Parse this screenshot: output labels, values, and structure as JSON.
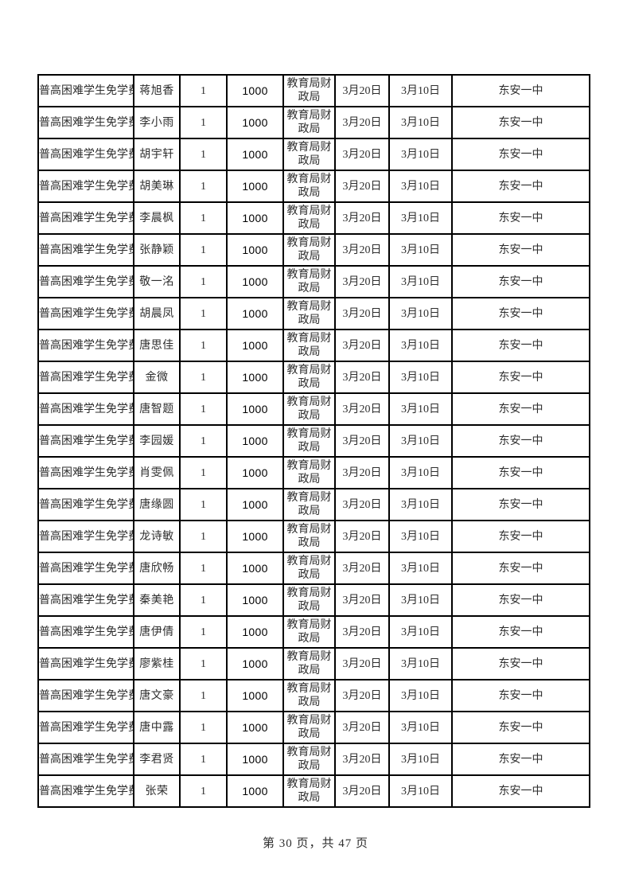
{
  "document": {
    "footer": "第 30 页，共 47 页",
    "current_page": 30,
    "total_pages": 47
  },
  "colors": {
    "page_bg": "#ffffff",
    "table_border": "#000000",
    "text": "#2e2e2e",
    "amount_text": "#000000"
  },
  "table": {
    "rows": [
      [
        "普高困难学生免学费",
        "蒋旭香",
        "1",
        "1000",
        "教育局财政局",
        "3月20日",
        "3月10日",
        "东安一中"
      ],
      [
        "普高困难学生免学费",
        "李小雨",
        "1",
        "1000",
        "教育局财政局",
        "3月20日",
        "3月10日",
        "东安一中"
      ],
      [
        "普高困难学生免学费",
        "胡宇轩",
        "1",
        "1000",
        "教育局财政局",
        "3月20日",
        "3月10日",
        "东安一中"
      ],
      [
        "普高困难学生免学费",
        "胡美琳",
        "1",
        "1000",
        "教育局财政局",
        "3月20日",
        "3月10日",
        "东安一中"
      ],
      [
        "普高困难学生免学费",
        "李晨枫",
        "1",
        "1000",
        "教育局财政局",
        "3月20日",
        "3月10日",
        "东安一中"
      ],
      [
        "普高困难学生免学费",
        "张静颖",
        "1",
        "1000",
        "教育局财政局",
        "3月20日",
        "3月10日",
        "东安一中"
      ],
      [
        "普高困难学生免学费",
        "敬一洺",
        "1",
        "1000",
        "教育局财政局",
        "3月20日",
        "3月10日",
        "东安一中"
      ],
      [
        "普高困难学生免学费",
        "胡晨凤",
        "1",
        "1000",
        "教育局财政局",
        "3月20日",
        "3月10日",
        "东安一中"
      ],
      [
        "普高困难学生免学费",
        "唐思佳",
        "1",
        "1000",
        "教育局财政局",
        "3月20日",
        "3月10日",
        "东安一中"
      ],
      [
        "普高困难学生免学费",
        "金微",
        "1",
        "1000",
        "教育局财政局",
        "3月20日",
        "3月10日",
        "东安一中"
      ],
      [
        "普高困难学生免学费",
        "唐智题",
        "1",
        "1000",
        "教育局财政局",
        "3月20日",
        "3月10日",
        "东安一中"
      ],
      [
        "普高困难学生免学费",
        "李园媛",
        "1",
        "1000",
        "教育局财政局",
        "3月20日",
        "3月10日",
        "东安一中"
      ],
      [
        "普高困难学生免学费",
        "肖雯佩",
        "1",
        "1000",
        "教育局财政局",
        "3月20日",
        "3月10日",
        "东安一中"
      ],
      [
        "普高困难学生免学费",
        "唐缘圆",
        "1",
        "1000",
        "教育局财政局",
        "3月20日",
        "3月10日",
        "东安一中"
      ],
      [
        "普高困难学生免学费",
        "龙诗敏",
        "1",
        "1000",
        "教育局财政局",
        "3月20日",
        "3月10日",
        "东安一中"
      ],
      [
        "普高困难学生免学费",
        "唐欣畅",
        "1",
        "1000",
        "教育局财政局",
        "3月20日",
        "3月10日",
        "东安一中"
      ],
      [
        "普高困难学生免学费",
        "秦美艳",
        "1",
        "1000",
        "教育局财政局",
        "3月20日",
        "3月10日",
        "东安一中"
      ],
      [
        "普高困难学生免学费",
        "唐伊倩",
        "1",
        "1000",
        "教育局财政局",
        "3月20日",
        "3月10日",
        "东安一中"
      ],
      [
        "普高困难学生免学费",
        "廖紫桂",
        "1",
        "1000",
        "教育局财政局",
        "3月20日",
        "3月10日",
        "东安一中"
      ],
      [
        "普高困难学生免学费",
        "唐文豪",
        "1",
        "1000",
        "教育局财政局",
        "3月20日",
        "3月10日",
        "东安一中"
      ],
      [
        "普高困难学生免学费",
        "唐中露",
        "1",
        "1000",
        "教育局财政局",
        "3月20日",
        "3月10日",
        "东安一中"
      ],
      [
        "普高困难学生免学费",
        "李君贤",
        "1",
        "1000",
        "教育局财政局",
        "3月20日",
        "3月10日",
        "东安一中"
      ],
      [
        "普高困难学生免学费",
        "张荣",
        "1",
        "1000",
        "教育局财政局",
        "3月20日",
        "3月10日",
        "东安一中"
      ]
    ]
  }
}
